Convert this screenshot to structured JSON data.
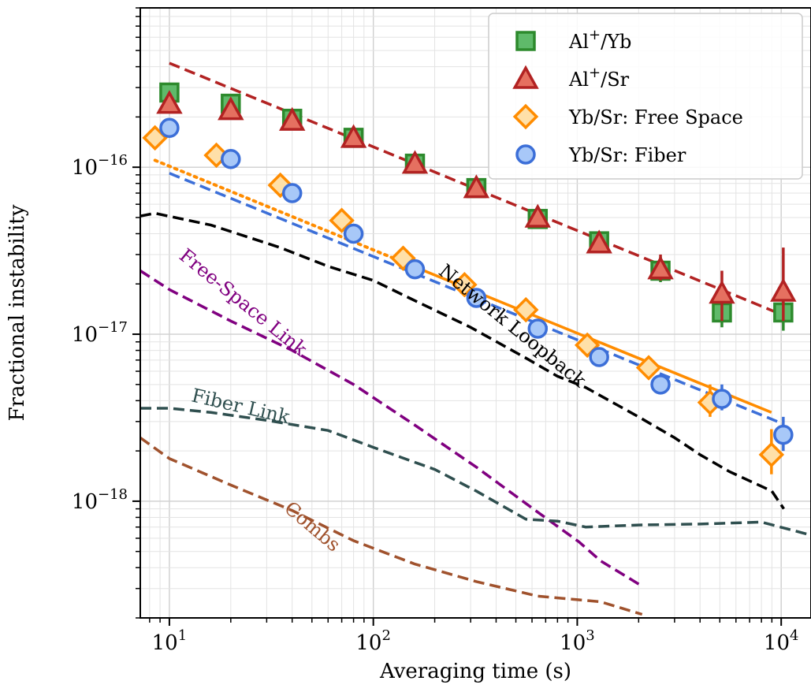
{
  "chart_data": {
    "type": "scatter",
    "title": "",
    "xlabel": "Averaging time (s)",
    "ylabel": "Fractional instability",
    "xscale": "log",
    "yscale": "log",
    "xlim": [
      7.2,
      14000
    ],
    "ylim": [
      2e-19,
      9e-16
    ],
    "grid": true,
    "legend_position": "top-right",
    "x_ticks": [
      {
        "value": 10,
        "base": "10",
        "exp": "1"
      },
      {
        "value": 100,
        "base": "10",
        "exp": "2"
      },
      {
        "value": 1000,
        "base": "10",
        "exp": "3"
      },
      {
        "value": 10000,
        "base": "10",
        "exp": "4"
      }
    ],
    "y_ticks": [
      {
        "value": 1e-18,
        "base": "10",
        "exp": "−18"
      },
      {
        "value": 1e-17,
        "base": "10",
        "exp": "−17"
      },
      {
        "value": 1e-16,
        "base": "10",
        "exp": "−16"
      }
    ],
    "series": [
      {
        "name": "Al+/Yb",
        "legend_base": "Al",
        "legend_sup": "+",
        "legend_rest": "/Yb",
        "marker": "square",
        "fill": "#5fba6a",
        "stroke": "#2d8a2d",
        "points": [
          {
            "x": 10,
            "y": 2.8e-16
          },
          {
            "x": 20,
            "y": 2.4e-16
          },
          {
            "x": 40,
            "y": 1.95e-16
          },
          {
            "x": 80,
            "y": 1.5e-16
          },
          {
            "x": 160,
            "y": 1.05e-16
          },
          {
            "x": 320,
            "y": 7.5e-17
          },
          {
            "x": 640,
            "y": 4.9e-17
          },
          {
            "x": 1280,
            "y": 3.6e-17,
            "lo": 3.2e-17,
            "hi": 4e-17
          },
          {
            "x": 2560,
            "y": 2.4e-17,
            "lo": 2.05e-17,
            "hi": 2.9e-17
          },
          {
            "x": 5120,
            "y": 1.35e-17,
            "lo": 1.1e-17,
            "hi": 1.6e-17
          },
          {
            "x": 10240,
            "y": 1.35e-17,
            "lo": 1.05e-17,
            "hi": 1.7e-17
          }
        ]
      },
      {
        "name": "Al+/Sr",
        "legend_base": "Al",
        "legend_sup": "+",
        "legend_rest": "/Sr",
        "marker": "triangle",
        "fill": "#e57060",
        "stroke": "#b22222",
        "points": [
          {
            "x": 10,
            "y": 2.4e-16
          },
          {
            "x": 20,
            "y": 2.2e-16
          },
          {
            "x": 40,
            "y": 1.9e-16
          },
          {
            "x": 80,
            "y": 1.5e-16
          },
          {
            "x": 160,
            "y": 1.05e-16
          },
          {
            "x": 320,
            "y": 7.5e-17
          },
          {
            "x": 640,
            "y": 5e-17
          },
          {
            "x": 1280,
            "y": 3.5e-17
          },
          {
            "x": 2560,
            "y": 2.45e-17,
            "lo": 2.1e-17,
            "hi": 3e-17
          },
          {
            "x": 5120,
            "y": 1.75e-17,
            "lo": 1.2e-17,
            "hi": 2.4e-17
          },
          {
            "x": 10240,
            "y": 1.8e-17,
            "lo": 1.2e-17,
            "hi": 3.3e-17
          }
        ]
      },
      {
        "name": "Yb/Sr: Free Space",
        "legend_base": "Yb/Sr: Free Space",
        "legend_sup": "",
        "legend_rest": "",
        "marker": "diamond",
        "fill": "#ffe0a8",
        "stroke": "#ff8c00",
        "points": [
          {
            "x": 8.5,
            "y": 1.5e-16
          },
          {
            "x": 17,
            "y": 1.18e-16
          },
          {
            "x": 35,
            "y": 7.8e-17
          },
          {
            "x": 70,
            "y": 4.8e-17
          },
          {
            "x": 140,
            "y": 2.85e-17
          },
          {
            "x": 280,
            "y": 1.98e-17
          },
          {
            "x": 560,
            "y": 1.4e-17
          },
          {
            "x": 1120,
            "y": 8.6e-18
          },
          {
            "x": 2240,
            "y": 6.3e-18,
            "lo": 5.6e-18,
            "hi": 7.2e-18
          },
          {
            "x": 4480,
            "y": 3.9e-18,
            "lo": 3.2e-18,
            "hi": 5e-18
          },
          {
            "x": 8960,
            "y": 1.9e-18,
            "lo": 1.45e-18,
            "hi": 2.7e-18
          }
        ]
      },
      {
        "name": "Yb/Sr: Fiber",
        "legend_base": "Yb/Sr: Fiber",
        "legend_sup": "",
        "legend_rest": "",
        "marker": "circle",
        "fill": "#a8c8f8",
        "stroke": "#3c6fd8",
        "points": [
          {
            "x": 10,
            "y": 1.72e-16
          },
          {
            "x": 20,
            "y": 1.12e-16
          },
          {
            "x": 40,
            "y": 7e-17
          },
          {
            "x": 80,
            "y": 4e-17
          },
          {
            "x": 160,
            "y": 2.45e-17
          },
          {
            "x": 320,
            "y": 1.65e-17
          },
          {
            "x": 640,
            "y": 1.08e-17
          },
          {
            "x": 1280,
            "y": 7.3e-18
          },
          {
            "x": 2560,
            "y": 5e-18
          },
          {
            "x": 5120,
            "y": 4.1e-18,
            "lo": 3.5e-18,
            "hi": 5e-18
          },
          {
            "x": 10240,
            "y": 2.5e-18,
            "lo": 2e-18,
            "hi": 3.2e-18
          }
        ]
      }
    ],
    "fit_lines": [
      {
        "name": "Al/Yb+Al/Sr fit",
        "color": "#b22222",
        "style": "dashed",
        "points": [
          [
            10,
            4.2e-16
          ],
          [
            10240,
            1.3e-17
          ]
        ]
      },
      {
        "name": "Yb/Sr free space fit (dotted)",
        "color": "#ff8c00",
        "style": "dotted",
        "points": [
          [
            8.5,
            1.1e-16
          ],
          [
            140,
            2.7e-17
          ]
        ]
      },
      {
        "name": "Yb/Sr free space fit (solid)",
        "color": "#ff8c00",
        "style": "solid",
        "points": [
          [
            140,
            2.7e-17
          ],
          [
            8960,
            3.4e-18
          ]
        ]
      },
      {
        "name": "Yb/Sr fiber fit",
        "color": "#3c6fd8",
        "style": "dashed",
        "points": [
          [
            10,
            9.2e-17
          ],
          [
            10240,
            2.9e-18
          ]
        ]
      }
    ],
    "reference_curves": [
      {
        "name": "Network Loopback",
        "label": "Network Loopback",
        "color": "#000000",
        "points": [
          [
            7.2,
            5.1e-17
          ],
          [
            8.5,
            5.3e-17
          ],
          [
            16,
            4.5e-17
          ],
          [
            35,
            3.3e-17
          ],
          [
            60,
            2.55e-17
          ],
          [
            100,
            2.1e-17
          ],
          [
            150,
            1.65e-17
          ],
          [
            300,
            1.1e-17
          ],
          [
            560,
            7.2e-18
          ],
          [
            800,
            5.6e-18
          ],
          [
            1100,
            4.8e-18
          ],
          [
            2000,
            3.2e-18
          ],
          [
            3000,
            2.4e-18
          ],
          [
            4000,
            1.9e-18
          ],
          [
            5600,
            1.5e-18
          ],
          [
            9000,
            1.15e-18
          ],
          [
            10300,
            9e-19
          ]
        ],
        "label_at": [
          460,
          1.05e-17
        ],
        "label_angle": 39
      },
      {
        "name": "Free-Space Link",
        "label": "Free-Space Link",
        "color": "#800080",
        "points": [
          [
            7.2,
            2.4e-17
          ],
          [
            10,
            1.85e-17
          ],
          [
            20,
            1.2e-17
          ],
          [
            40,
            8e-18
          ],
          [
            80,
            5e-18
          ],
          [
            160,
            2.85e-18
          ],
          [
            320,
            1.6e-18
          ],
          [
            640,
            8.6e-19
          ],
          [
            1020,
            5.7e-19
          ],
          [
            1300,
            4.4e-19
          ],
          [
            2080,
            3.1e-19
          ]
        ],
        "label_at": [
          22,
          1.45e-17
        ],
        "label_angle": 39
      },
      {
        "name": "Fiber Link",
        "label": "Fiber Link",
        "color": "#2f4f4f",
        "points": [
          [
            7.2,
            3.6e-18
          ],
          [
            10,
            3.6e-18
          ],
          [
            16,
            3.4e-18
          ],
          [
            30,
            3.05e-18
          ],
          [
            60,
            2.65e-18
          ],
          [
            100,
            2.1e-18
          ],
          [
            200,
            1.55e-18
          ],
          [
            320,
            1.15e-18
          ],
          [
            560,
            7.8e-19
          ],
          [
            800,
            7.6e-19
          ],
          [
            1100,
            7e-19
          ],
          [
            2000,
            7.2e-19
          ],
          [
            4000,
            7.3e-19
          ],
          [
            8000,
            7.5e-19
          ],
          [
            16000,
            6e-19
          ],
          [
            22000,
            5.4e-19
          ],
          [
            50000,
            3.8e-19
          ]
        ],
        "label_at": [
          22,
          3.4e-18
        ],
        "label_angle": 13
      },
      {
        "name": "Combs",
        "label": "Combs",
        "color": "#a0522d",
        "points": [
          [
            7.2,
            2.4e-18
          ],
          [
            10,
            1.8e-18
          ],
          [
            20,
            1.25e-18
          ],
          [
            40,
            8.8e-19
          ],
          [
            80,
            5.8e-19
          ],
          [
            160,
            4.2e-19
          ],
          [
            320,
            3.3e-19
          ],
          [
            640,
            2.7e-19
          ],
          [
            1300,
            2.5e-19
          ],
          [
            2080,
            2.1e-19
          ]
        ],
        "label_at": [
          48,
          6.6e-19
        ],
        "label_angle": 40
      }
    ]
  }
}
